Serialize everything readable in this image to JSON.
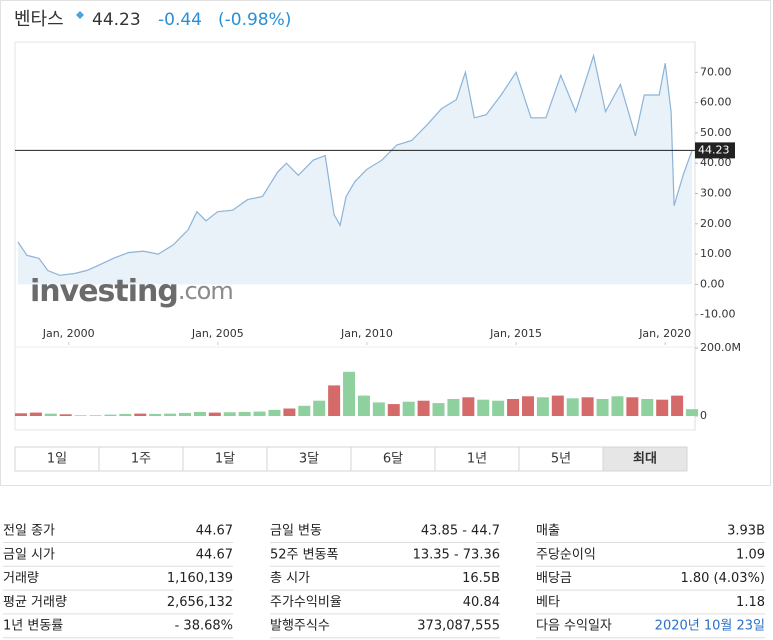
{
  "header": {
    "name": "벤타스",
    "price": "44.23",
    "change": "-0.44",
    "change_pct": "(-0.98%)"
  },
  "chart_data": [
    {
      "type": "line",
      "color": "#8cb4d8",
      "fill": "#e9f1f9",
      "x": [
        1998.3,
        1998.6,
        1999.0,
        1999.3,
        1999.7,
        2000.2,
        2000.6,
        2001.0,
        2001.5,
        2002.0,
        2002.5,
        2003.0,
        2003.5,
        2004.0,
        2004.3,
        2004.6,
        2005.0,
        2005.5,
        2006.0,
        2006.5,
        2007.0,
        2007.3,
        2007.7,
        2008.2,
        2008.6,
        2008.9,
        2009.1,
        2009.3,
        2009.6,
        2010.0,
        2010.5,
        2011.0,
        2011.5,
        2012.0,
        2012.5,
        2013.0,
        2013.3,
        2013.6,
        2014.0,
        2014.5,
        2015.0,
        2015.5,
        2016.0,
        2016.5,
        2017.0,
        2017.6,
        2018.0,
        2018.5,
        2019.0,
        2019.3,
        2019.8,
        2020.0,
        2020.2,
        2020.3,
        2020.6,
        2020.9
      ],
      "values": [
        14,
        9.6,
        8.6,
        4.6,
        3,
        3.6,
        4.6,
        6.3,
        8.6,
        10.5,
        11,
        10,
        13,
        18,
        24,
        21,
        24,
        24.5,
        28,
        29,
        37,
        40,
        36,
        41,
        42.5,
        23,
        19.5,
        29,
        34,
        38,
        41,
        46,
        47.5,
        52.5,
        58,
        61,
        70,
        55,
        56,
        62.5,
        70,
        55,
        55,
        69,
        57,
        75.5,
        57,
        66,
        49,
        62.5,
        62.5,
        73,
        57,
        26,
        36,
        44.23
      ],
      "reference_line": 44.23,
      "xlim": [
        1998.2,
        2021
      ],
      "xticks": [
        {
          "value": 2000,
          "label": "Jan, 2000"
        },
        {
          "value": 2005,
          "label": "Jan, 2005"
        },
        {
          "value": 2010,
          "label": "Jan, 2010"
        },
        {
          "value": 2015,
          "label": "Jan, 2015"
        },
        {
          "value": 2020,
          "label": "Jan, 2020"
        }
      ],
      "ylim": [
        -20,
        80
      ],
      "yticks": [
        {
          "value": -10,
          "label": "-10.00"
        },
        {
          "value": 0,
          "label": "0.00"
        },
        {
          "value": 10,
          "label": "10.00"
        },
        {
          "value": 20,
          "label": "20.00"
        },
        {
          "value": 30,
          "label": "30.00"
        },
        {
          "value": 40,
          "label": "40.00"
        },
        {
          "value": 50,
          "label": "50.00"
        },
        {
          "value": 60,
          "label": "60.00"
        },
        {
          "value": 70,
          "label": "70.00"
        }
      ]
    },
    {
      "type": "bar",
      "x": [
        1998.4,
        1998.9,
        1999.4,
        1999.9,
        2000.4,
        2000.9,
        2001.4,
        2001.9,
        2002.4,
        2002.9,
        2003.4,
        2003.9,
        2004.4,
        2004.9,
        2005.4,
        2005.9,
        2006.4,
        2006.9,
        2007.4,
        2007.9,
        2008.4,
        2008.9,
        2009.4,
        2009.9,
        2010.4,
        2010.9,
        2011.4,
        2011.9,
        2012.4,
        2012.9,
        2013.4,
        2013.9,
        2014.4,
        2014.9,
        2015.4,
        2015.9,
        2016.4,
        2016.9,
        2017.4,
        2017.9,
        2018.4,
        2018.9,
        2019.4,
        2019.9,
        2020.4,
        2020.9
      ],
      "values": [
        8000000,
        10000000,
        7000000,
        5000000,
        2000000,
        2000000,
        4000000,
        6000000,
        7000000,
        6000000,
        7000000,
        9000000,
        12000000,
        10000000,
        11000000,
        12000000,
        13000000,
        18000000,
        22000000,
        30000000,
        45000000,
        90000000,
        130000000,
        60000000,
        40000000,
        35000000,
        42000000,
        45000000,
        38000000,
        50000000,
        55000000,
        48000000,
        45000000,
        50000000,
        58000000,
        55000000,
        60000000,
        52000000,
        55000000,
        50000000,
        58000000,
        55000000,
        50000000,
        48000000,
        60000000,
        20000000
      ],
      "colors": [
        "#d46a6a",
        "#d46a6a",
        "#8fd19e",
        "#d46a6a",
        "#8fd19e",
        "#8fd19e",
        "#8fd19e",
        "#8fd19e",
        "#d46a6a",
        "#8fd19e",
        "#8fd19e",
        "#8fd19e",
        "#8fd19e",
        "#d46a6a",
        "#8fd19e",
        "#8fd19e",
        "#8fd19e",
        "#8fd19e",
        "#d46a6a",
        "#8fd19e",
        "#8fd19e",
        "#d46a6a",
        "#8fd19e",
        "#8fd19e",
        "#8fd19e",
        "#d46a6a",
        "#8fd19e",
        "#d46a6a",
        "#8fd19e",
        "#8fd19e",
        "#d46a6a",
        "#8fd19e",
        "#8fd19e",
        "#d46a6a",
        "#d46a6a",
        "#8fd19e",
        "#d46a6a",
        "#8fd19e",
        "#d46a6a",
        "#8fd19e",
        "#8fd19e",
        "#d46a6a",
        "#8fd19e",
        "#d46a6a",
        "#d46a6a",
        "#8fd19e"
      ],
      "ylim": [
        0,
        200000000
      ],
      "yticks": [
        0,
        {
          "value": 200000000,
          "label": "200.0M"
        }
      ]
    }
  ],
  "watermark": {
    "brand": "investing",
    "suffix": ".com"
  },
  "ranges": [
    "1일",
    "1주",
    "1달",
    "3달",
    "6달",
    "1년",
    "5년",
    "최대"
  ],
  "selected_range": 7,
  "stats": {
    "rows": [
      [
        [
          "전일 종가",
          "44.67"
        ],
        [
          "금일 변동",
          "43.85 - 44.7"
        ],
        [
          "매출",
          "3.93B"
        ]
      ],
      [
        [
          "금일 시가",
          "44.67"
        ],
        [
          "52주 변동폭",
          "13.35 - 73.36"
        ],
        [
          "주당순이익",
          "1.09"
        ]
      ],
      [
        [
          "거래량",
          "1,160,139"
        ],
        [
          "총 시가",
          "16.5B"
        ],
        [
          "배당금",
          "1.80 (4.03%)"
        ]
      ],
      [
        [
          "평균 거래량",
          "2,656,132"
        ],
        [
          "주가수익비율",
          "40.84"
        ],
        [
          "베타",
          "1.18"
        ]
      ],
      [
        [
          "1년 변동률",
          "- 38.68%"
        ],
        [
          "발행주식수",
          "373,087,555"
        ],
        [
          "다음 수익일자",
          "2020년 10월 23일"
        ]
      ]
    ]
  }
}
